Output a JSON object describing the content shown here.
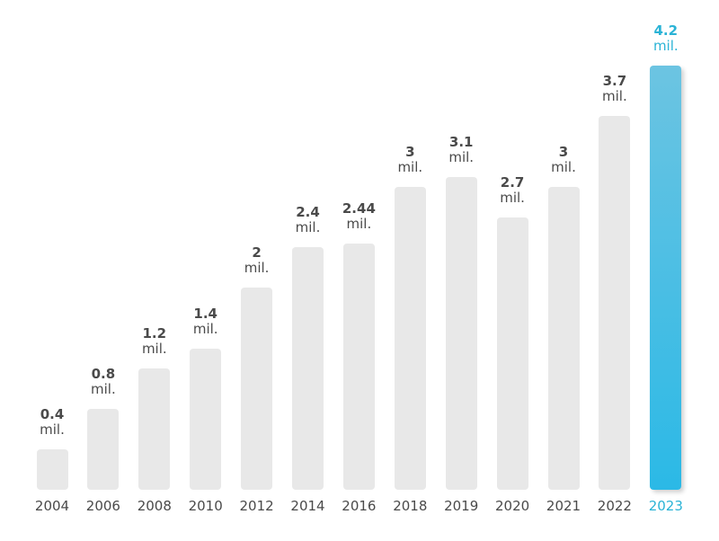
{
  "chart_data": {
    "type": "bar",
    "title": "",
    "xlabel": "",
    "ylabel": "",
    "unit_label": "mil.",
    "categories": [
      "2004",
      "2006",
      "2008",
      "2010",
      "2012",
      "2014",
      "2016",
      "2018",
      "2019",
      "2020",
      "2021",
      "2022",
      "2023"
    ],
    "values": [
      0.4,
      0.8,
      1.2,
      1.4,
      2,
      2.4,
      2.44,
      3,
      3.1,
      2.7,
      3,
      3.7,
      4.2
    ],
    "value_labels": [
      "0.4",
      "0.8",
      "1.2",
      "1.4",
      "2",
      "2.4",
      "2.44",
      "3",
      "3.1",
      "2.7",
      "3",
      "3.7",
      "4.2"
    ],
    "highlight_index": 12,
    "ylim": [
      0,
      4.2
    ],
    "grid": false,
    "legend": null,
    "colors": {
      "bar": "#e8e8e8",
      "highlight_top": "#6cc4e2",
      "highlight_bottom": "#2bb9e6",
      "text": "#4a4a4a",
      "highlight_text": "#2ab3d6"
    }
  }
}
